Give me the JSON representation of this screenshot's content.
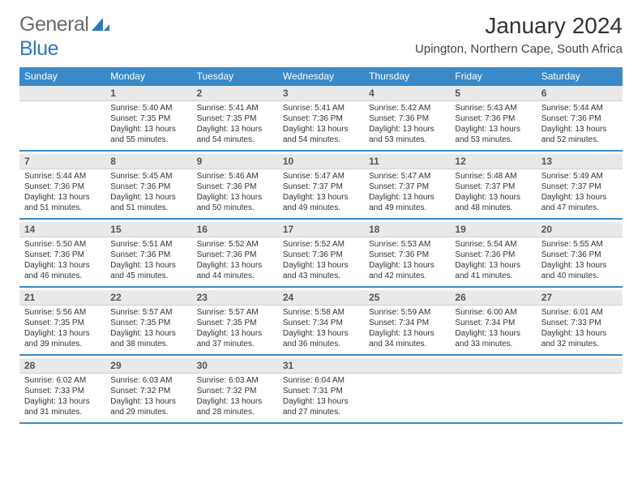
{
  "logo": {
    "text1": "General",
    "text2": "Blue"
  },
  "title": "January 2024",
  "location": "Upington, Northern Cape, South Africa",
  "colors": {
    "header_bg": "#3a8ac9",
    "daynum_bg": "#e9e9e9",
    "accent": "#2f78c0"
  },
  "weekdays": [
    "Sunday",
    "Monday",
    "Tuesday",
    "Wednesday",
    "Thursday",
    "Friday",
    "Saturday"
  ],
  "weeks": [
    {
      "nums": [
        "",
        "1",
        "2",
        "3",
        "4",
        "5",
        "6"
      ],
      "cells": [
        null,
        {
          "sunrise": "Sunrise: 5:40 AM",
          "sunset": "Sunset: 7:35 PM",
          "day1": "Daylight: 13 hours",
          "day2": "and 55 minutes."
        },
        {
          "sunrise": "Sunrise: 5:41 AM",
          "sunset": "Sunset: 7:35 PM",
          "day1": "Daylight: 13 hours",
          "day2": "and 54 minutes."
        },
        {
          "sunrise": "Sunrise: 5:41 AM",
          "sunset": "Sunset: 7:36 PM",
          "day1": "Daylight: 13 hours",
          "day2": "and 54 minutes."
        },
        {
          "sunrise": "Sunrise: 5:42 AM",
          "sunset": "Sunset: 7:36 PM",
          "day1": "Daylight: 13 hours",
          "day2": "and 53 minutes."
        },
        {
          "sunrise": "Sunrise: 5:43 AM",
          "sunset": "Sunset: 7:36 PM",
          "day1": "Daylight: 13 hours",
          "day2": "and 53 minutes."
        },
        {
          "sunrise": "Sunrise: 5:44 AM",
          "sunset": "Sunset: 7:36 PM",
          "day1": "Daylight: 13 hours",
          "day2": "and 52 minutes."
        }
      ]
    },
    {
      "nums": [
        "7",
        "8",
        "9",
        "10",
        "11",
        "12",
        "13"
      ],
      "cells": [
        {
          "sunrise": "Sunrise: 5:44 AM",
          "sunset": "Sunset: 7:36 PM",
          "day1": "Daylight: 13 hours",
          "day2": "and 51 minutes."
        },
        {
          "sunrise": "Sunrise: 5:45 AM",
          "sunset": "Sunset: 7:36 PM",
          "day1": "Daylight: 13 hours",
          "day2": "and 51 minutes."
        },
        {
          "sunrise": "Sunrise: 5:46 AM",
          "sunset": "Sunset: 7:36 PM",
          "day1": "Daylight: 13 hours",
          "day2": "and 50 minutes."
        },
        {
          "sunrise": "Sunrise: 5:47 AM",
          "sunset": "Sunset: 7:37 PM",
          "day1": "Daylight: 13 hours",
          "day2": "and 49 minutes."
        },
        {
          "sunrise": "Sunrise: 5:47 AM",
          "sunset": "Sunset: 7:37 PM",
          "day1": "Daylight: 13 hours",
          "day2": "and 49 minutes."
        },
        {
          "sunrise": "Sunrise: 5:48 AM",
          "sunset": "Sunset: 7:37 PM",
          "day1": "Daylight: 13 hours",
          "day2": "and 48 minutes."
        },
        {
          "sunrise": "Sunrise: 5:49 AM",
          "sunset": "Sunset: 7:37 PM",
          "day1": "Daylight: 13 hours",
          "day2": "and 47 minutes."
        }
      ]
    },
    {
      "nums": [
        "14",
        "15",
        "16",
        "17",
        "18",
        "19",
        "20"
      ],
      "cells": [
        {
          "sunrise": "Sunrise: 5:50 AM",
          "sunset": "Sunset: 7:36 PM",
          "day1": "Daylight: 13 hours",
          "day2": "and 46 minutes."
        },
        {
          "sunrise": "Sunrise: 5:51 AM",
          "sunset": "Sunset: 7:36 PM",
          "day1": "Daylight: 13 hours",
          "day2": "and 45 minutes."
        },
        {
          "sunrise": "Sunrise: 5:52 AM",
          "sunset": "Sunset: 7:36 PM",
          "day1": "Daylight: 13 hours",
          "day2": "and 44 minutes."
        },
        {
          "sunrise": "Sunrise: 5:52 AM",
          "sunset": "Sunset: 7:36 PM",
          "day1": "Daylight: 13 hours",
          "day2": "and 43 minutes."
        },
        {
          "sunrise": "Sunrise: 5:53 AM",
          "sunset": "Sunset: 7:36 PM",
          "day1": "Daylight: 13 hours",
          "day2": "and 42 minutes."
        },
        {
          "sunrise": "Sunrise: 5:54 AM",
          "sunset": "Sunset: 7:36 PM",
          "day1": "Daylight: 13 hours",
          "day2": "and 41 minutes."
        },
        {
          "sunrise": "Sunrise: 5:55 AM",
          "sunset": "Sunset: 7:36 PM",
          "day1": "Daylight: 13 hours",
          "day2": "and 40 minutes."
        }
      ]
    },
    {
      "nums": [
        "21",
        "22",
        "23",
        "24",
        "25",
        "26",
        "27"
      ],
      "cells": [
        {
          "sunrise": "Sunrise: 5:56 AM",
          "sunset": "Sunset: 7:35 PM",
          "day1": "Daylight: 13 hours",
          "day2": "and 39 minutes."
        },
        {
          "sunrise": "Sunrise: 5:57 AM",
          "sunset": "Sunset: 7:35 PM",
          "day1": "Daylight: 13 hours",
          "day2": "and 38 minutes."
        },
        {
          "sunrise": "Sunrise: 5:57 AM",
          "sunset": "Sunset: 7:35 PM",
          "day1": "Daylight: 13 hours",
          "day2": "and 37 minutes."
        },
        {
          "sunrise": "Sunrise: 5:58 AM",
          "sunset": "Sunset: 7:34 PM",
          "day1": "Daylight: 13 hours",
          "day2": "and 36 minutes."
        },
        {
          "sunrise": "Sunrise: 5:59 AM",
          "sunset": "Sunset: 7:34 PM",
          "day1": "Daylight: 13 hours",
          "day2": "and 34 minutes."
        },
        {
          "sunrise": "Sunrise: 6:00 AM",
          "sunset": "Sunset: 7:34 PM",
          "day1": "Daylight: 13 hours",
          "day2": "and 33 minutes."
        },
        {
          "sunrise": "Sunrise: 6:01 AM",
          "sunset": "Sunset: 7:33 PM",
          "day1": "Daylight: 13 hours",
          "day2": "and 32 minutes."
        }
      ]
    },
    {
      "nums": [
        "28",
        "29",
        "30",
        "31",
        "",
        "",
        ""
      ],
      "cells": [
        {
          "sunrise": "Sunrise: 6:02 AM",
          "sunset": "Sunset: 7:33 PM",
          "day1": "Daylight: 13 hours",
          "day2": "and 31 minutes."
        },
        {
          "sunrise": "Sunrise: 6:03 AM",
          "sunset": "Sunset: 7:32 PM",
          "day1": "Daylight: 13 hours",
          "day2": "and 29 minutes."
        },
        {
          "sunrise": "Sunrise: 6:03 AM",
          "sunset": "Sunset: 7:32 PM",
          "day1": "Daylight: 13 hours",
          "day2": "and 28 minutes."
        },
        {
          "sunrise": "Sunrise: 6:04 AM",
          "sunset": "Sunset: 7:31 PM",
          "day1": "Daylight: 13 hours",
          "day2": "and 27 minutes."
        },
        null,
        null,
        null
      ]
    }
  ]
}
